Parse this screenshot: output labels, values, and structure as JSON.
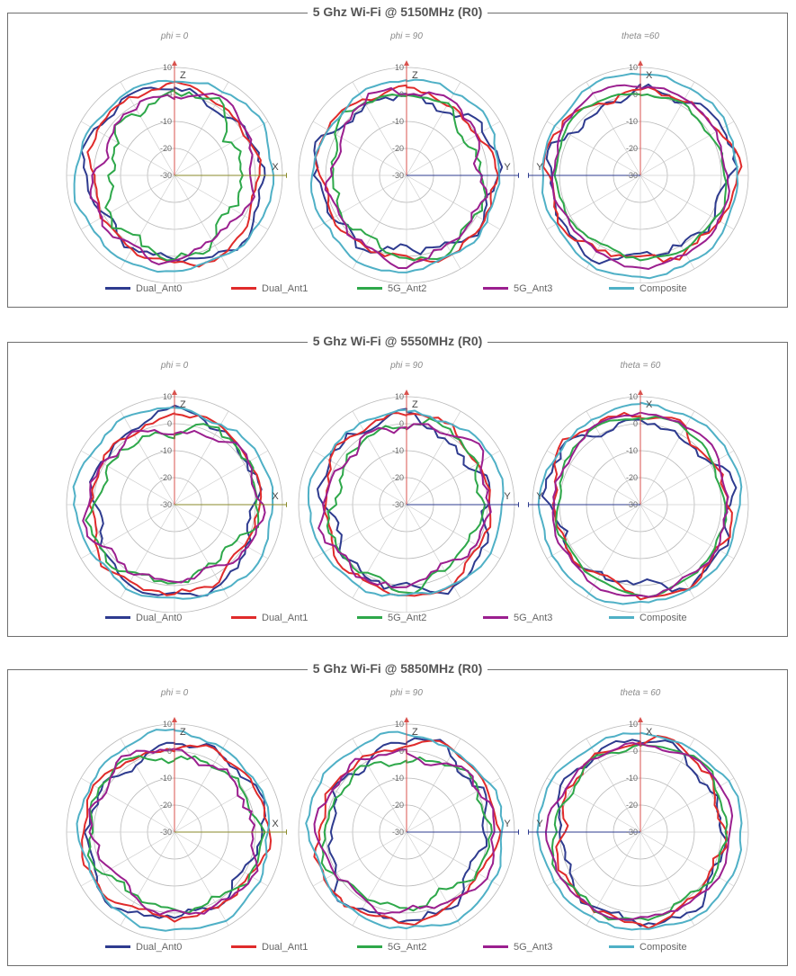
{
  "chart_data": [
    {
      "type": "polar",
      "title": "5 Ghz Wi-Fi @ 5150MHz (R0)",
      "radial_range": [
        -30,
        10
      ],
      "radial_ticks": [
        "10",
        "0",
        "-10",
        "-20",
        "-30"
      ],
      "legend": [
        "Dual_Ant0",
        "Dual_Ant1",
        "5G_Ant2",
        "5G_Ant3",
        "Composite"
      ],
      "colors": [
        "#2e3b8f",
        "#e02b2b",
        "#2ea84a",
        "#9b1f8f",
        "#4fb0c6"
      ],
      "plots": [
        {
          "subtitle": "phi = 0",
          "h_axis": "X",
          "h_dir": "right",
          "v_axis": "Z",
          "series": [
            {
              "name": "Dual_Ant0",
              "mean": 2,
              "ripple": 4,
              "seed": 1
            },
            {
              "name": "Dual_Ant1",
              "mean": 2,
              "ripple": 3,
              "seed": 2
            },
            {
              "name": "5G_Ant2",
              "mean": -3,
              "ripple": 6,
              "seed": 3
            },
            {
              "name": "5G_Ant3",
              "mean": 0,
              "ripple": 4,
              "seed": 4
            },
            {
              "name": "Composite",
              "mean": 6,
              "ripple": 2,
              "seed": 5
            }
          ]
        },
        {
          "subtitle": "phi = 90",
          "h_axis": "Y",
          "h_dir": "right",
          "v_axis": "Z",
          "series": [
            {
              "name": "Dual_Ant0",
              "mean": 1,
              "ripple": 5,
              "seed": 6
            },
            {
              "name": "Dual_Ant1",
              "mean": 2,
              "ripple": 3,
              "seed": 7
            },
            {
              "name": "5G_Ant2",
              "mean": -1,
              "ripple": 4,
              "seed": 8
            },
            {
              "name": "5G_Ant3",
              "mean": 0,
              "ripple": 4,
              "seed": 9
            },
            {
              "name": "Composite",
              "mean": 5,
              "ripple": 2,
              "seed": 10
            }
          ]
        },
        {
          "subtitle": "theta =60",
          "h_axis": "Y",
          "h_dir": "left",
          "v_axis": "X",
          "series": [
            {
              "name": "Dual_Ant0",
              "mean": 2,
              "ripple": 5,
              "seed": 11
            },
            {
              "name": "Dual_Ant1",
              "mean": 3,
              "ripple": 4,
              "seed": 12
            },
            {
              "name": "5G_Ant2",
              "mean": 1,
              "ripple": 2,
              "seed": 13
            },
            {
              "name": "5G_Ant3",
              "mean": 3,
              "ripple": 2,
              "seed": 14
            },
            {
              "name": "Composite",
              "mean": 7,
              "ripple": 1.5,
              "seed": 15
            }
          ]
        }
      ]
    },
    {
      "type": "polar",
      "title": "5 Ghz Wi-Fi @ 5550MHz (R0)",
      "radial_range": [
        -30,
        10
      ],
      "radial_ticks": [
        "10",
        "0",
        "-10",
        "-20",
        "-30"
      ],
      "legend": [
        "Dual_Ant0",
        "Dual_Ant1",
        "5G_Ant2",
        "5G_Ant3",
        "Composite"
      ],
      "colors": [
        "#2e3b8f",
        "#e02b2b",
        "#2ea84a",
        "#9b1f8f",
        "#4fb0c6"
      ],
      "plots": [
        {
          "subtitle": "phi = 0",
          "h_axis": "X",
          "h_dir": "right",
          "v_axis": "Z",
          "series": [
            {
              "name": "Dual_Ant0",
              "mean": 2,
              "ripple": 4,
              "seed": 21
            },
            {
              "name": "Dual_Ant1",
              "mean": 2,
              "ripple": 3,
              "seed": 22
            },
            {
              "name": "5G_Ant2",
              "mean": -1,
              "ripple": 5,
              "seed": 23
            },
            {
              "name": "5G_Ant3",
              "mean": 0,
              "ripple": 4,
              "seed": 24
            },
            {
              "name": "Composite",
              "mean": 6,
              "ripple": 2,
              "seed": 25
            }
          ]
        },
        {
          "subtitle": "phi = 90",
          "h_axis": "Y",
          "h_dir": "right",
          "v_axis": "Z",
          "series": [
            {
              "name": "Dual_Ant0",
              "mean": 1,
              "ripple": 5,
              "seed": 26
            },
            {
              "name": "Dual_Ant1",
              "mean": 2,
              "ripple": 3,
              "seed": 27
            },
            {
              "name": "5G_Ant2",
              "mean": -1,
              "ripple": 4,
              "seed": 28
            },
            {
              "name": "5G_Ant3",
              "mean": 0,
              "ripple": 4,
              "seed": 29
            },
            {
              "name": "Composite",
              "mean": 5,
              "ripple": 2,
              "seed": 30
            }
          ]
        },
        {
          "subtitle": "theta = 60",
          "h_axis": "Y",
          "h_dir": "left",
          "v_axis": "X",
          "series": [
            {
              "name": "Dual_Ant0",
              "mean": 2,
              "ripple": 5,
              "seed": 31
            },
            {
              "name": "Dual_Ant1",
              "mean": 3,
              "ripple": 4,
              "seed": 32
            },
            {
              "name": "5G_Ant2",
              "mean": 2,
              "ripple": 2,
              "seed": 33
            },
            {
              "name": "5G_Ant3",
              "mean": 3,
              "ripple": 2,
              "seed": 34
            },
            {
              "name": "Composite",
              "mean": 7,
              "ripple": 1.5,
              "seed": 35
            }
          ]
        }
      ]
    },
    {
      "type": "polar",
      "title": "5  Ghz Wi-Fi @ 5850MHz (R0)",
      "radial_range": [
        -30,
        10
      ],
      "radial_ticks": [
        "10",
        "0",
        "-10",
        "-20",
        "-30"
      ],
      "legend": [
        "Dual_Ant0",
        "Dual_Ant1",
        "5G_Ant2",
        "5G_Ant3",
        "Composite"
      ],
      "colors": [
        "#2e3b8f",
        "#e02b2b",
        "#2ea84a",
        "#9b1f8f",
        "#4fb0c6"
      ],
      "plots": [
        {
          "subtitle": "phi = 0",
          "h_axis": "X",
          "h_dir": "right",
          "v_axis": "Z",
          "series": [
            {
              "name": "Dual_Ant0",
              "mean": 2,
              "ripple": 4,
              "seed": 41
            },
            {
              "name": "Dual_Ant1",
              "mean": 3,
              "ripple": 3,
              "seed": 42
            },
            {
              "name": "5G_Ant2",
              "mean": 0,
              "ripple": 4,
              "seed": 43
            },
            {
              "name": "5G_Ant3",
              "mean": 0,
              "ripple": 4,
              "seed": 44
            },
            {
              "name": "Composite",
              "mean": 6,
              "ripple": 2,
              "seed": 45
            }
          ]
        },
        {
          "subtitle": "phi = 90",
          "h_axis": "Y",
          "h_dir": "right",
          "v_axis": "Z",
          "series": [
            {
              "name": "Dual_Ant0",
              "mean": 1,
              "ripple": 5,
              "seed": 46
            },
            {
              "name": "Dual_Ant1",
              "mean": 3,
              "ripple": 3,
              "seed": 47
            },
            {
              "name": "5G_Ant2",
              "mean": -1,
              "ripple": 4,
              "seed": 48
            },
            {
              "name": "5G_Ant3",
              "mean": 1,
              "ripple": 4,
              "seed": 49
            },
            {
              "name": "Composite",
              "mean": 6,
              "ripple": 2,
              "seed": 50
            }
          ]
        },
        {
          "subtitle": "theta = 60",
          "h_axis": "Y",
          "h_dir": "left",
          "v_axis": "X",
          "series": [
            {
              "name": "Dual_Ant0",
              "mean": 2,
              "ripple": 4,
              "seed": 51
            },
            {
              "name": "Dual_Ant1",
              "mean": 2,
              "ripple": 4,
              "seed": 52
            },
            {
              "name": "5G_Ant2",
              "mean": 2,
              "ripple": 3,
              "seed": 53
            },
            {
              "name": "5G_Ant3",
              "mean": 3,
              "ripple": 2,
              "seed": 54
            },
            {
              "name": "Composite",
              "mean": 7,
              "ripple": 1.5,
              "seed": 55
            }
          ]
        }
      ]
    }
  ]
}
